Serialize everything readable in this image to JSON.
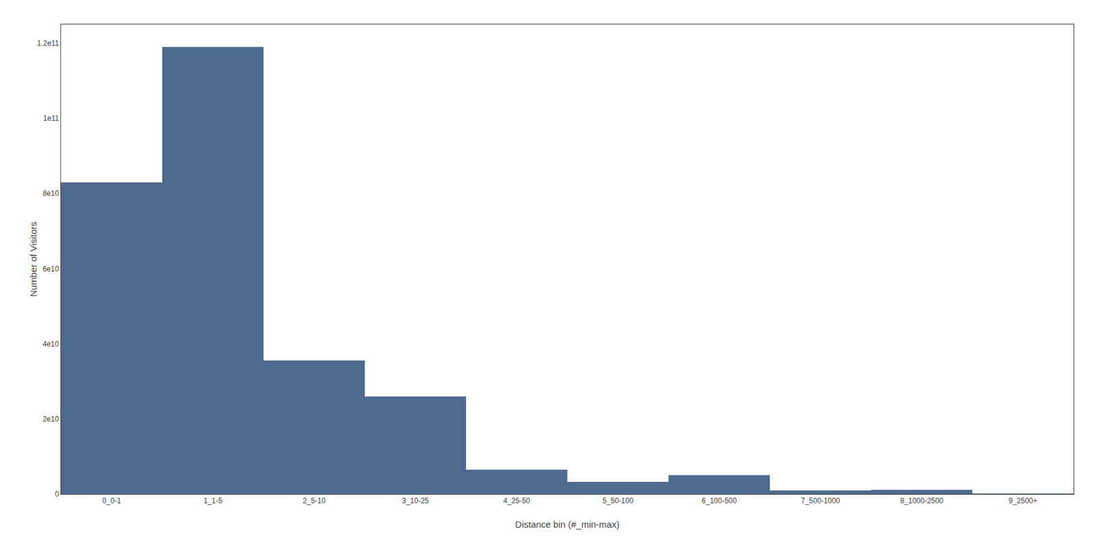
{
  "chart_data": {
    "type": "bar",
    "categories": [
      "0_0-1",
      "1_1-5",
      "2_5-10",
      "3_10-25",
      "4_25-50",
      "5_50-100",
      "6_100-500",
      "7_500-1000",
      "8_1000-2500",
      "9_2500+"
    ],
    "values": [
      83000000000.0,
      119000000000.0,
      35500000000.0,
      26000000000.0,
      6500000000.0,
      3200000000.0,
      5000000000.0,
      900000000.0,
      1200000000.0,
      100000000.0
    ],
    "color": "#4f6a8f",
    "xlabel": "Distance bin (#_min-max)",
    "ylabel": "Number of Visitors",
    "ylim": [
      0,
      125000000000.0
    ],
    "yticks": [
      0,
      {
        "value": 20000000000.0,
        "label": "2e10"
      },
      {
        "value": 40000000000.0,
        "label": "4e10"
      },
      {
        "value": 60000000000.0,
        "label": "6e10"
      },
      {
        "value": 80000000000.0,
        "label": "8e10"
      },
      {
        "value": 100000000000.0,
        "label": "1e11"
      },
      {
        "value": 120000000000.0,
        "label": "1.2e11"
      }
    ],
    "grid": false
  }
}
